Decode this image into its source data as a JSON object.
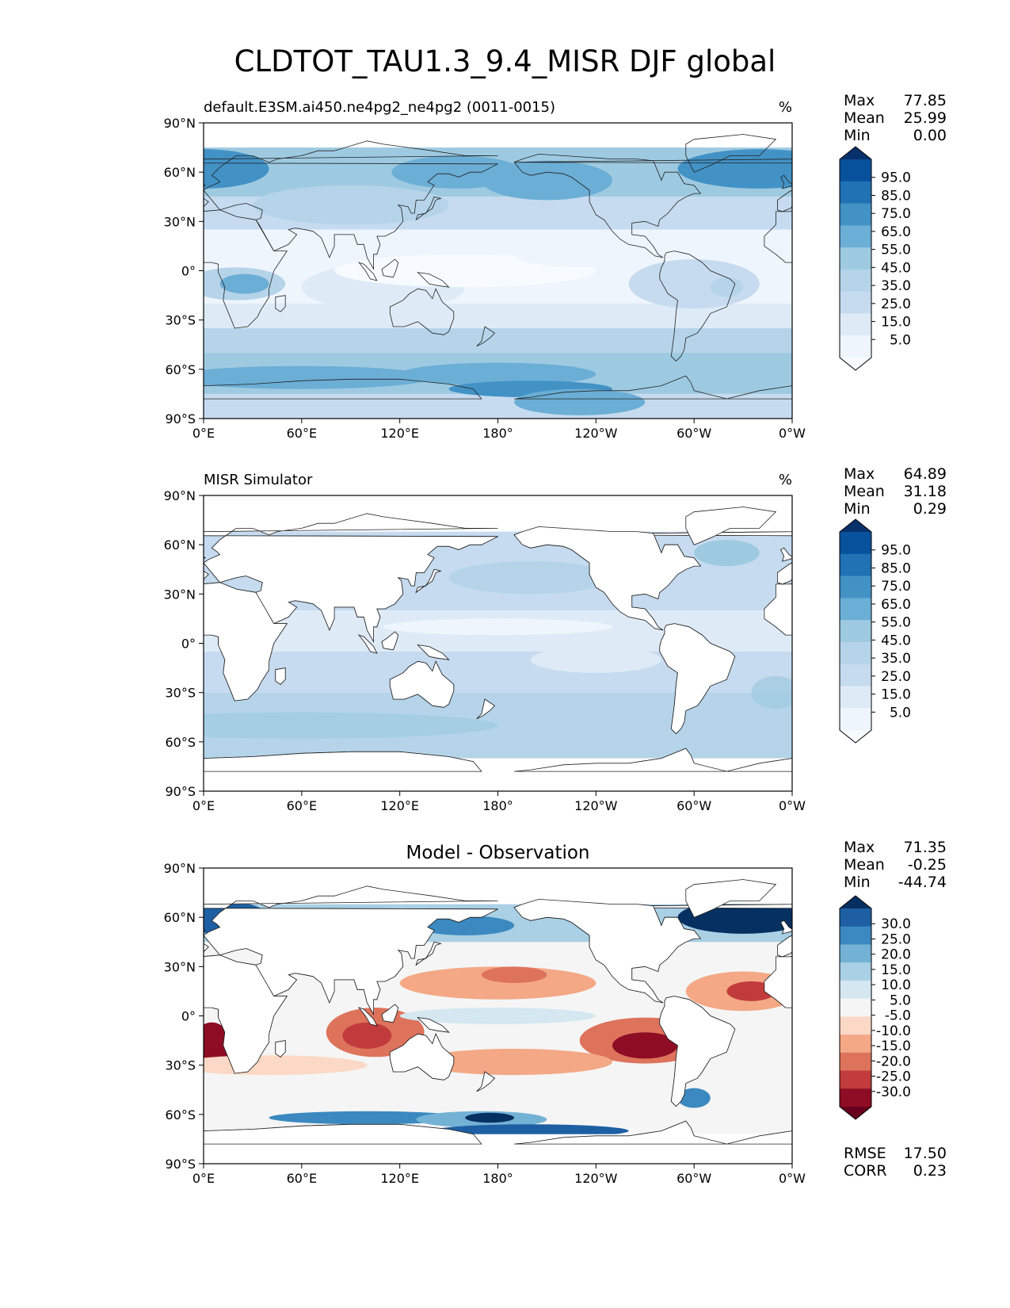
{
  "figure": {
    "title": "CLDTOT_TAU1.3_9.4_MISR DJF global"
  },
  "axes": {
    "lat_labels": [
      "90°N",
      "60°N",
      "30°N",
      "0°",
      "30°S",
      "60°S",
      "90°S"
    ],
    "lon_labels": [
      "0°E",
      "60°E",
      "120°E",
      "180°",
      "120°W",
      "60°W",
      "0°W"
    ]
  },
  "panels": [
    {
      "id": "model",
      "title_left": "default.E3SM.ai450.ne4pg2_ne4pg2 (0011-0015)",
      "title_center": "",
      "units": "%",
      "stats": [
        {
          "label": "Max",
          "value": "77.85"
        },
        {
          "label": "Mean",
          "value": "25.99"
        },
        {
          "label": "Min",
          "value": "0.00"
        }
      ],
      "colorbar": {
        "ticks": [
          "95.0",
          "85.0",
          "75.0",
          "65.0",
          "55.0",
          "45.0",
          "35.0",
          "25.0",
          "15.0",
          "5.0"
        ],
        "colors": [
          "#08306b",
          "#08519c",
          "#2171b5",
          "#4292c6",
          "#6baed6",
          "#9ecae1",
          "#b5d4e9",
          "#c6dbef",
          "#deebf7",
          "#eef5fc",
          "#f7fbff"
        ]
      }
    },
    {
      "id": "obs",
      "title_left": "MISR Simulator",
      "title_center": "",
      "units": "%",
      "stats": [
        {
          "label": "Max",
          "value": "64.89"
        },
        {
          "label": "Mean",
          "value": "31.18"
        },
        {
          "label": "Min",
          "value": "0.29"
        }
      ],
      "colorbar": {
        "ticks": [
          "95.0",
          "85.0",
          "75.0",
          "65.0",
          "55.0",
          "45.0",
          "35.0",
          "25.0",
          "15.0",
          "5.0"
        ],
        "colors": [
          "#08306b",
          "#08519c",
          "#2171b5",
          "#4292c6",
          "#6baed6",
          "#9ecae1",
          "#b5d4e9",
          "#c6dbef",
          "#deebf7",
          "#eef5fc",
          "#f7fbff"
        ]
      }
    },
    {
      "id": "diff",
      "title_left": "",
      "title_center": "Model - Observation",
      "units": "",
      "stats": [
        {
          "label": "Max",
          "value": "71.35"
        },
        {
          "label": "Mean",
          "value": "-0.25"
        },
        {
          "label": "Min",
          "value": "-44.74"
        }
      ],
      "extra": [
        {
          "label": "RMSE",
          "value": "17.50"
        },
        {
          "label": "CORR",
          "value": "0.23"
        }
      ],
      "colorbar": {
        "ticks": [
          "30.0",
          "25.0",
          "20.0",
          "15.0",
          "10.0",
          "5.0",
          "-5.0",
          "-10.0",
          "-15.0",
          "-20.0",
          "-25.0",
          "-30.0"
        ],
        "colors": [
          "#053061",
          "#1d5fa2",
          "#3b89c0",
          "#74b2d5",
          "#a9d0e5",
          "#d5e7f1",
          "#f5f5f5",
          "#fbd9c6",
          "#f4a886",
          "#de735c",
          "#c13b3c",
          "#8e0d25",
          "#67001f"
        ]
      }
    }
  ]
}
